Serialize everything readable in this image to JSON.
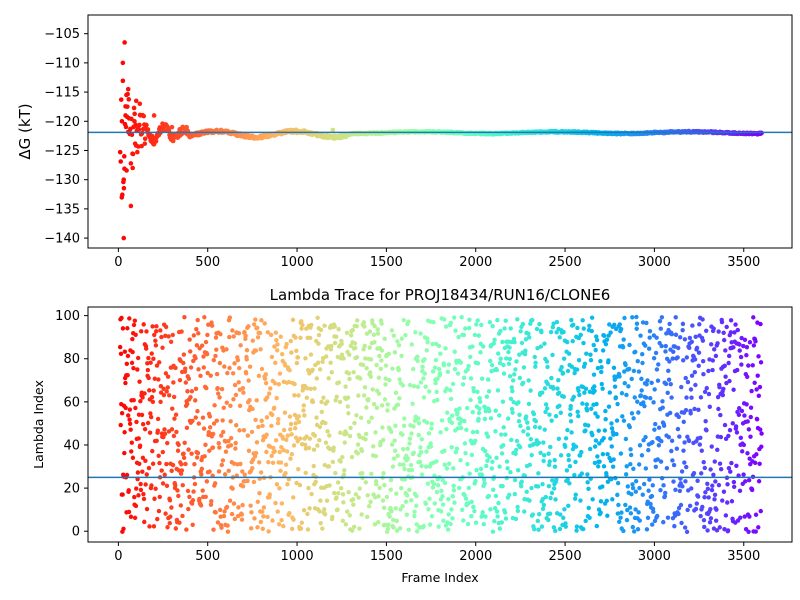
{
  "chart_data": [
    {
      "type": "scatter",
      "title": "",
      "xlabel": "",
      "ylabel": "ΔG (kT)",
      "xlim": [
        -170,
        3770
      ],
      "ylim": [
        -141.7,
        -101.8
      ],
      "xticks": [
        0,
        500,
        1000,
        1500,
        2000,
        2500,
        3000,
        3500
      ],
      "yticks": [
        -140,
        -135,
        -130,
        -125,
        -120,
        -115,
        -110,
        -105
      ],
      "colormap": "rainbow (red at early frames → purple at late frames)",
      "hline": -121.9,
      "hline_color": "#1f77b4",
      "series": [
        {
          "x": [
            20,
            25,
            30,
            30,
            33,
            35,
            40,
            45,
            50,
            55,
            60,
            70,
            80,
            90,
            100,
            110,
            120,
            150,
            200,
            300,
            500,
            750,
            1000,
            1200,
            1500,
            2000,
            2500,
            3000,
            3500,
            3600
          ],
          "values": [
            -120,
            -110,
            -140,
            -130,
            -126,
            -106.5,
            -119,
            -115.5,
            -117.5,
            -114.5,
            -119.5,
            -134.5,
            -128,
            -120,
            -116.5,
            -121,
            -117,
            -123,
            -119,
            -121,
            -122,
            -122.5,
            -122,
            -121.5,
            -122,
            -122,
            -121.8,
            -121.8,
            -122,
            -122
          ]
        }
      ]
    },
    {
      "type": "scatter",
      "title": "Lambda Trace for PROJ18434/RUN16/CLONE6",
      "xlabel": "Frame Index",
      "ylabel": "Lambda Index",
      "xlim": [
        -170,
        3770
      ],
      "ylim": [
        -5,
        104
      ],
      "xticks": [
        0,
        500,
        1000,
        1500,
        2000,
        2500,
        3000,
        3500
      ],
      "yticks": [
        0,
        20,
        40,
        60,
        80,
        100
      ],
      "colormap": "rainbow (red at early frames → purple at late frames)",
      "hline": 25,
      "hline_color": "#1f77b4",
      "frame_range": [
        0,
        3600
      ],
      "lambda_range": [
        0,
        99
      ],
      "distribution": "uniform random over frames and lambda indices"
    }
  ]
}
